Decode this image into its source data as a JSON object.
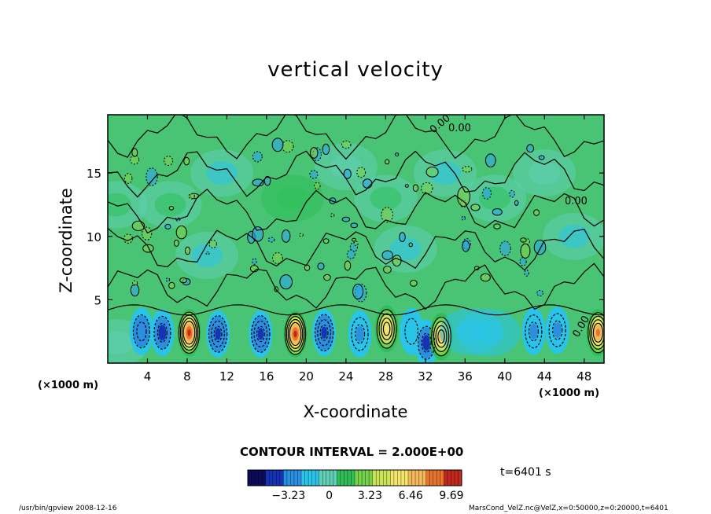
{
  "chart_data": {
    "type": "heatmap",
    "title": "vertical velocity",
    "xlabel": "X-coordinate",
    "ylabel": "Z-coordinate",
    "x_unit": "(×1000 m)",
    "xlim": [
      0,
      50
    ],
    "ylim": [
      0,
      19.6
    ],
    "x_ticks": [
      4,
      8,
      12,
      16,
      20,
      24,
      28,
      32,
      36,
      40,
      44,
      48
    ],
    "y_ticks": [
      5,
      10,
      15
    ],
    "contour_interval": "CONTOUR INTERVAL = 2.000E+00",
    "contour_label": "0.00",
    "colorbar": {
      "ticks": [
        -3.23,
        0,
        3.23,
        6.46,
        9.69
      ],
      "tick_labels": [
        "−3.23",
        "0",
        "3.23",
        "6.46",
        "9.69"
      ],
      "range": [
        -6.46,
        10.5
      ],
      "colors": [
        "#0b0b5a",
        "#1733b5",
        "#2a8fe0",
        "#29c4ea",
        "#5fd0b5",
        "#2fbf5a",
        "#77d24a",
        "#c9e35a",
        "#f3e56a",
        "#f2b85a",
        "#e6742f",
        "#c2271e"
      ]
    },
    "cells": [
      {
        "x": 1,
        "z": 1.6,
        "w": 0.5
      },
      {
        "x": 3.4,
        "z": 2.5,
        "w": -3.5
      },
      {
        "x": 5.5,
        "z": 2.4,
        "w": -3.8
      },
      {
        "x": 8.2,
        "z": 2.4,
        "w": 9.5
      },
      {
        "x": 11.1,
        "z": 2.3,
        "w": -4.5
      },
      {
        "x": 15.4,
        "z": 2.3,
        "w": -4.8
      },
      {
        "x": 18.9,
        "z": 2.3,
        "w": 10.2
      },
      {
        "x": 21.8,
        "z": 2.4,
        "w": -4.5
      },
      {
        "x": 25.4,
        "z": 2.3,
        "w": -2.5
      },
      {
        "x": 28.1,
        "z": 2.7,
        "w": 6.2
      },
      {
        "x": 30.6,
        "z": 2.5,
        "w": -2.2
      },
      {
        "x": 32.1,
        "z": 1.6,
        "w": -3.8
      },
      {
        "x": 33.6,
        "z": 2.1,
        "w": 6.8
      },
      {
        "x": 36.6,
        "z": 2.5,
        "w": -1.8
      },
      {
        "x": 38.4,
        "z": 2.4,
        "w": -2.0
      },
      {
        "x": 42.9,
        "z": 2.5,
        "w": -3.2
      },
      {
        "x": 45.3,
        "z": 2.6,
        "w": -3.0
      },
      {
        "x": 49.4,
        "z": 2.4,
        "w": 8.5
      },
      {
        "x": 0.8,
        "z": 12.5,
        "w": 1.0
      },
      {
        "x": 6.3,
        "z": 12.5,
        "w": 1.2
      },
      {
        "x": 18.6,
        "z": 13.0,
        "w": 1.4
      },
      {
        "x": 28.0,
        "z": 13.0,
        "w": 1.2
      },
      {
        "x": 39.0,
        "z": 13.0,
        "w": 1.1
      },
      {
        "x": 11.5,
        "z": 15.0,
        "w": -0.9
      },
      {
        "x": 24.0,
        "z": 15.5,
        "w": -0.7
      },
      {
        "x": 34.0,
        "z": 15.0,
        "w": -1.0
      },
      {
        "x": 44.0,
        "z": 15.0,
        "w": -0.8
      },
      {
        "x": 47.0,
        "z": 10.0,
        "w": -1.0
      },
      {
        "x": 10.0,
        "z": 8.5,
        "w": -1.1
      },
      {
        "x": 30.0,
        "z": 9.0,
        "w": -1.0
      }
    ]
  },
  "footer": {
    "left": "/usr/bin/gpview   2008-12-16",
    "right": "MarsCond_VelZ.nc@VelZ,x=0:50000,z=0:20000,t=6401"
  },
  "time_label": "t=6401  s"
}
